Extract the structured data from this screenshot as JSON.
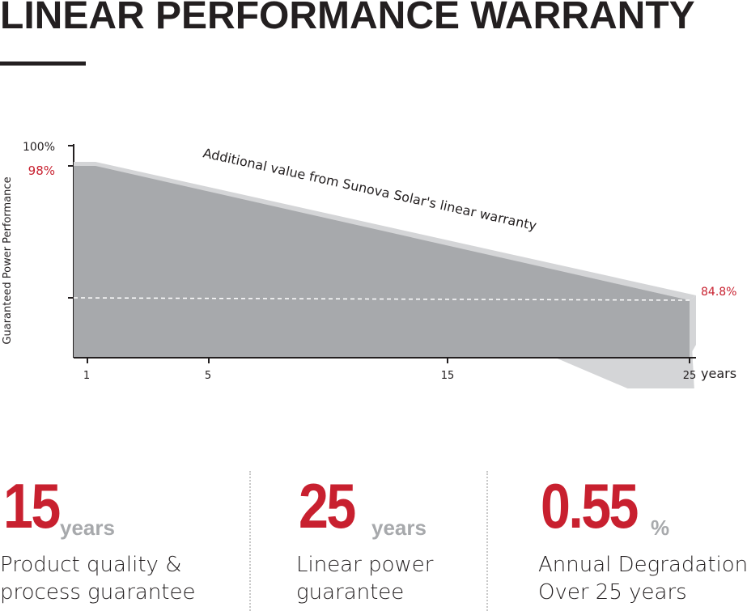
{
  "title": "LINEAR PERFORMANCE WARRANTY",
  "colors": {
    "accent": "#c8202f",
    "area": "#a7a9ac",
    "band": "#d4d5d7",
    "text": "#231f20",
    "muted": "#a7a9ac"
  },
  "chart_data": {
    "type": "area",
    "ylabel": "Guaranteed Power Performance",
    "xlabel": "years",
    "x_ticks": [
      "1",
      "5",
      "15",
      "25"
    ],
    "y_ticks": [
      {
        "label": "100%",
        "value": 100
      },
      {
        "label": "98%",
        "value": 98
      }
    ],
    "xlim": [
      0,
      25
    ],
    "ylim": [
      80,
      100
    ],
    "series": [
      {
        "x": [
          0,
          25
        ],
        "y": [
          98,
          84.8
        ]
      }
    ],
    "annotations": {
      "start_label": "98%",
      "end_label": "84.8%",
      "band_label": "Additional value from Sunova Solar's linear warranty"
    }
  },
  "stats": [
    {
      "value": "15",
      "unit": "years",
      "line1": "Product quality &",
      "line2": "process guarantee"
    },
    {
      "value": "25",
      "unit": "years",
      "line1": "Linear power",
      "line2": "guarantee"
    },
    {
      "value": "0.55",
      "unit": "%",
      "line1": "Annual Degradation",
      "line2": "Over 25 years"
    }
  ]
}
